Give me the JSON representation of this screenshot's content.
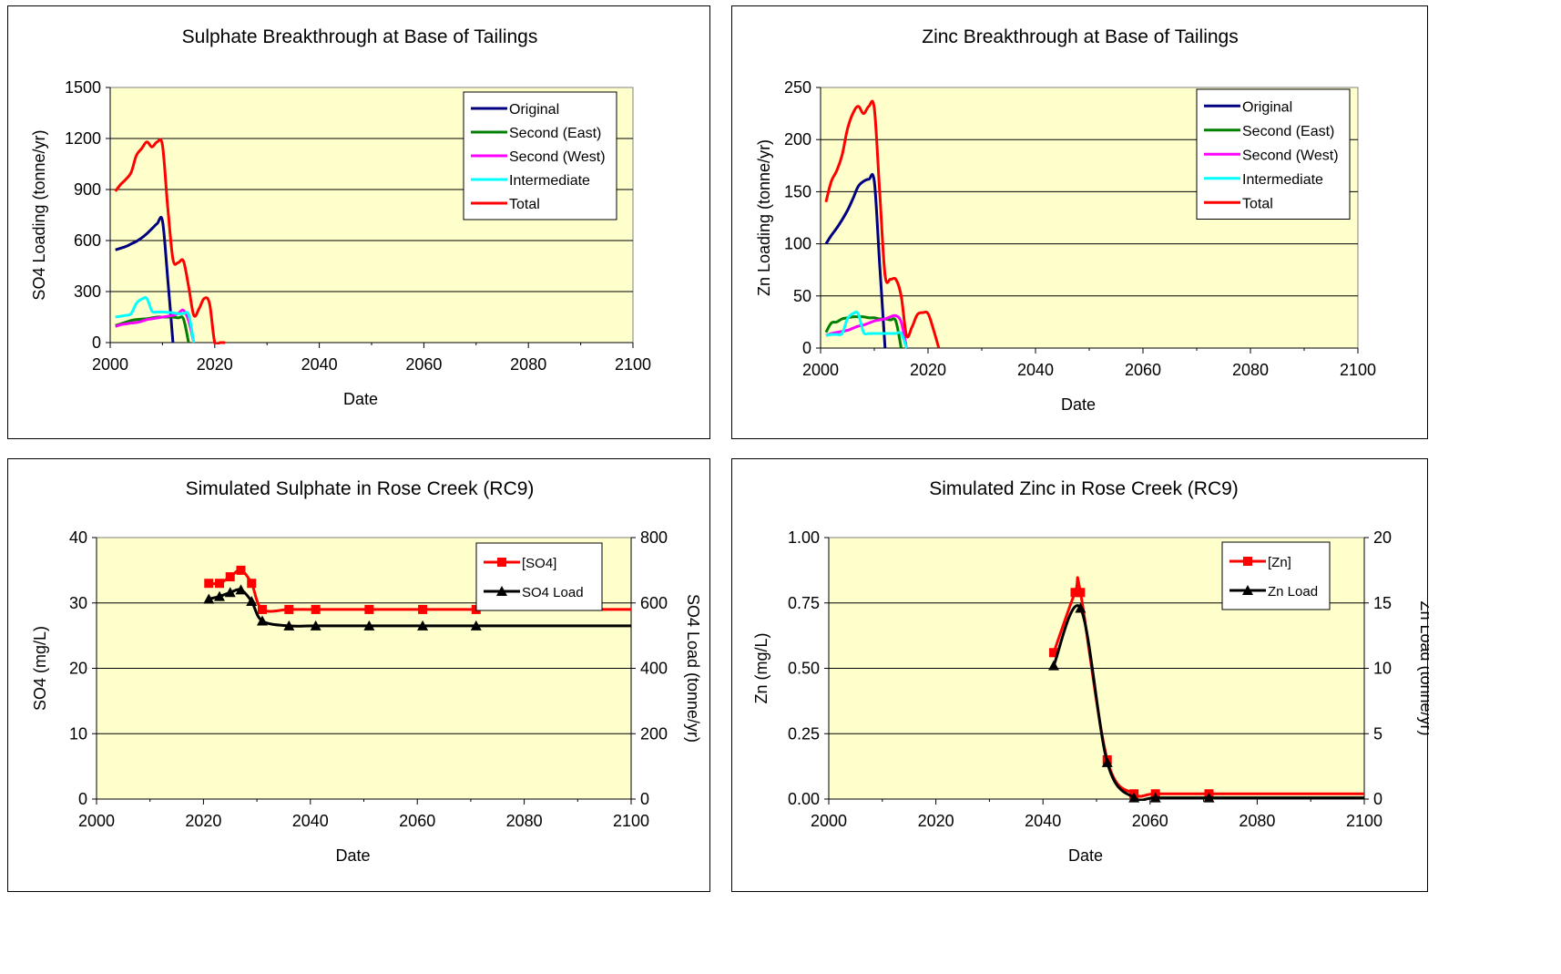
{
  "chart_data": [
    {
      "id": "sulphate-breakthrough",
      "type": "line",
      "title": "Sulphate Breakthrough at Base of Tailings",
      "xlabel": "Date",
      "ylabel": "SO4 Loading (tonne/yr)",
      "xlim": [
        2000,
        2100
      ],
      "ylim": [
        0,
        1500
      ],
      "xticks": [
        2000,
        2020,
        2040,
        2060,
        2080,
        2100
      ],
      "yticks": [
        0,
        300,
        600,
        900,
        1200,
        1500
      ],
      "grid": "horizontal",
      "plot_bg": "#FFFFCC",
      "legend_position": "top-right",
      "series": [
        {
          "name": "Original",
          "color": "#000080",
          "x": [
            2001,
            2002,
            2003,
            2004,
            2005,
            2006,
            2007,
            2008,
            2009,
            2010,
            2011,
            2012
          ],
          "y": [
            545,
            555,
            565,
            580,
            595,
            615,
            640,
            670,
            700,
            715,
            380,
            0
          ]
        },
        {
          "name": "Second (East)",
          "color": "#008000",
          "x": [
            2001,
            2002,
            2003,
            2004,
            2005,
            2006,
            2007,
            2008,
            2009,
            2010,
            2011,
            2012,
            2013,
            2014,
            2015
          ],
          "y": [
            100,
            110,
            120,
            130,
            135,
            138,
            140,
            145,
            150,
            150,
            150,
            150,
            145,
            140,
            0
          ]
        },
        {
          "name": "Second (West)",
          "color": "#FF00FF",
          "x": [
            2001,
            2002,
            2003,
            2004,
            2005,
            2006,
            2007,
            2008,
            2009,
            2010,
            2011,
            2012,
            2013,
            2014,
            2015,
            2016
          ],
          "y": [
            95,
            105,
            110,
            115,
            118,
            125,
            135,
            140,
            145,
            150,
            155,
            160,
            170,
            190,
            130,
            0
          ]
        },
        {
          "name": "Intermediate",
          "color": "#00FFFF",
          "x": [
            2001,
            2002,
            2003,
            2004,
            2005,
            2006,
            2007,
            2008,
            2009,
            2010,
            2011,
            2012,
            2013,
            2014,
            2015,
            2016
          ],
          "y": [
            150,
            155,
            160,
            170,
            230,
            255,
            260,
            185,
            180,
            180,
            178,
            175,
            170,
            170,
            165,
            0
          ]
        },
        {
          "name": "Total",
          "color": "#FF0000",
          "x": [
            2001,
            2002,
            2003,
            2004,
            2005,
            2006,
            2007,
            2008,
            2009,
            2010,
            2011,
            2012,
            2013,
            2014,
            2015,
            2016,
            2017,
            2018,
            2019,
            2020,
            2021,
            2022
          ],
          "y": [
            890,
            930,
            960,
            1000,
            1100,
            1140,
            1180,
            1150,
            1180,
            1160,
            800,
            490,
            470,
            480,
            330,
            160,
            200,
            260,
            230,
            0,
            0,
            0
          ]
        }
      ]
    },
    {
      "id": "zinc-breakthrough",
      "type": "line",
      "title": "Zinc Breakthrough at Base of Tailings",
      "xlabel": "Date",
      "ylabel": "Zn Loading (tonne/yr)",
      "xlim": [
        2000,
        2100
      ],
      "ylim": [
        0,
        250
      ],
      "xticks": [
        2000,
        2020,
        2040,
        2060,
        2080,
        2100
      ],
      "yticks": [
        0,
        50,
        100,
        150,
        200,
        250
      ],
      "grid": "horizontal",
      "plot_bg": "#FFFFCC",
      "legend_position": "top-right",
      "series": [
        {
          "name": "Original",
          "color": "#000080",
          "x": [
            2001,
            2002,
            2003,
            2004,
            2005,
            2006,
            2007,
            2008,
            2009,
            2010,
            2011,
            2012
          ],
          "y": [
            100,
            108,
            115,
            123,
            132,
            143,
            155,
            160,
            162,
            160,
            80,
            0
          ]
        },
        {
          "name": "Second (East)",
          "color": "#008000",
          "x": [
            2001,
            2002,
            2003,
            2004,
            2005,
            2006,
            2007,
            2008,
            2009,
            2010,
            2011,
            2012,
            2013,
            2014,
            2015
          ],
          "y": [
            15,
            24,
            25,
            28,
            29,
            30,
            30,
            30,
            29,
            29,
            28,
            28,
            27,
            26,
            0
          ]
        },
        {
          "name": "Second (West)",
          "color": "#FF00FF",
          "x": [
            2001,
            2002,
            2003,
            2004,
            2005,
            2006,
            2007,
            2008,
            2009,
            2010,
            2011,
            2012,
            2013,
            2014,
            2015,
            2016
          ],
          "y": [
            12,
            14,
            15,
            16,
            17,
            19,
            21,
            22,
            24,
            26,
            27,
            28,
            30,
            31,
            25,
            0
          ]
        },
        {
          "name": "Intermediate",
          "color": "#00FFFF",
          "x": [
            2001,
            2002,
            2003,
            2004,
            2005,
            2006,
            2007,
            2008,
            2009,
            2010,
            2011,
            2012,
            2013,
            2014,
            2015,
            2016
          ],
          "y": [
            12,
            13,
            13,
            14,
            28,
            33,
            33,
            15,
            14,
            14,
            14,
            14,
            14,
            14,
            14,
            0
          ]
        },
        {
          "name": "Total",
          "color": "#FF0000",
          "x": [
            2001,
            2002,
            2003,
            2004,
            2005,
            2006,
            2007,
            2008,
            2009,
            2010,
            2011,
            2012,
            2013,
            2014,
            2015,
            2016,
            2017,
            2018,
            2019,
            2020,
            2021,
            2022
          ],
          "y": [
            140,
            160,
            170,
            185,
            210,
            225,
            232,
            225,
            232,
            230,
            150,
            70,
            66,
            66,
            50,
            12,
            20,
            32,
            34,
            33,
            18,
            0
          ]
        }
      ]
    },
    {
      "id": "sulphate-rose-creek",
      "type": "line",
      "title": "Simulated Sulphate in Rose Creek (RC9)",
      "xlabel": "Date",
      "ylabel": "SO4 (mg/L)",
      "y2label": "SO4 Load (tonne/yr)",
      "xlim": [
        2000,
        2100
      ],
      "ylim": [
        0,
        40
      ],
      "y2lim": [
        0,
        800
      ],
      "xticks": [
        2000,
        2020,
        2040,
        2060,
        2080,
        2100
      ],
      "yticks": [
        0,
        10,
        20,
        30,
        40
      ],
      "y2ticks": [
        0,
        200,
        400,
        600,
        800
      ],
      "grid": "horizontal",
      "plot_bg": "#FFFFCC",
      "legend_position": "top-right",
      "series": [
        {
          "name": "[SO4]",
          "color": "#FF0000",
          "marker": "square",
          "axis": "left",
          "x": [
            2021,
            2023,
            2025,
            2027,
            2029,
            2031,
            2036,
            2041,
            2051,
            2061,
            2071,
            2100
          ],
          "y": [
            33,
            33,
            34,
            35,
            33,
            29,
            29,
            29,
            29,
            29,
            29,
            29
          ],
          "marker_count": 11
        },
        {
          "name": "SO4 Load",
          "color": "#000000",
          "marker": "triangle",
          "axis": "right",
          "x": [
            2021,
            2023,
            2025,
            2027,
            2029,
            2031,
            2036,
            2041,
            2051,
            2061,
            2071,
            2100
          ],
          "y": [
            612,
            620,
            632,
            640,
            605,
            545,
            530,
            530,
            530,
            530,
            530,
            530
          ],
          "marker_count": 11
        }
      ]
    },
    {
      "id": "zinc-rose-creek",
      "type": "line",
      "title": "Simulated Zinc in Rose Creek (RC9)",
      "xlabel": "Date",
      "ylabel": "Zn (mg/L)",
      "y2label": "Zn Load (tonne/yr)",
      "xlim": [
        2000,
        2100
      ],
      "ylim": [
        0,
        1
      ],
      "y2lim": [
        0,
        20
      ],
      "xticks": [
        2000,
        2020,
        2040,
        2060,
        2080,
        2100
      ],
      "yticks": [
        "0.00",
        "0.25",
        "0.50",
        "0.75",
        "1.00"
      ],
      "y2ticks": [
        0,
        5,
        10,
        15,
        20
      ],
      "grid": "horizontal",
      "plot_bg": "#FFFFCC",
      "legend_position": "top-right",
      "series": [
        {
          "name": "[Zn]",
          "color": "#FF0000",
          "marker": "square",
          "axis": "left",
          "x": [
            2042,
            2046,
            2047,
            2052,
            2057,
            2061,
            2071,
            2100
          ],
          "y": [
            0.56,
            0.79,
            0.79,
            0.15,
            0.02,
            0.02,
            0.02,
            0.02
          ],
          "marker_count": 7
        },
        {
          "name": "Zn Load",
          "color": "#000000",
          "marker": "triangle",
          "axis": "right",
          "x": [
            2042,
            2047,
            2052,
            2057,
            2061,
            2071,
            2100
          ],
          "y": [
            10.2,
            14.6,
            2.8,
            0.1,
            0.1,
            0.1,
            0.1
          ],
          "marker_count": 6
        }
      ]
    }
  ]
}
